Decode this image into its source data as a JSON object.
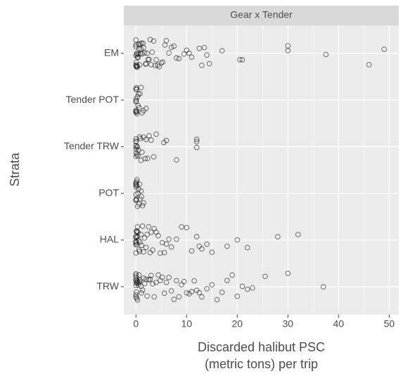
{
  "chart_data": {
    "type": "scatter",
    "facet_title": "Gear x Tender",
    "x_label_lines": [
      "Discarded halibut PSC",
      "(metric tons) per trip"
    ],
    "y_label": "Strata",
    "categories": [
      "EM",
      "Tender POT",
      "Tender TRW",
      "POT",
      "HAL",
      "TRW"
    ],
    "x": [
      [
        0,
        0,
        0,
        0,
        0,
        0,
        0.05,
        0.1,
        0.1,
        0.15,
        0.2,
        0.2,
        0.3,
        0.3,
        0.4,
        0.5,
        0.5,
        0.6,
        0.7,
        0.8,
        0.9,
        1,
        1.1,
        1.2,
        1.4,
        1.5,
        1.7,
        1.9,
        2,
        2.2,
        2.4,
        2.6,
        2.8,
        3,
        3.2,
        3.5,
        3.8,
        4,
        4.3,
        4.6,
        5,
        5.3,
        5.7,
        6,
        6.5,
        7,
        7.5,
        8,
        8.5,
        9.5,
        10,
        10.5,
        11,
        12.5,
        13,
        13.5,
        14,
        14.5,
        17,
        20.5,
        21,
        30,
        30,
        37.5,
        46,
        49
      ],
      [
        0,
        0,
        0,
        0,
        0,
        0,
        0.05,
        0.1,
        0.1,
        0.2,
        0.2,
        0.3,
        0.4,
        0.5,
        0.6,
        0.8,
        1,
        1.2,
        1.5,
        2
      ],
      [
        0,
        0,
        0,
        0,
        0,
        0,
        0.05,
        0.1,
        0.2,
        0.3,
        0.4,
        0.5,
        0.7,
        0.9,
        1,
        1.2,
        1.5,
        1.8,
        2,
        2.3,
        2.6,
        3,
        3.5,
        4,
        5.5,
        6,
        8,
        12,
        12,
        12
      ],
      [
        0,
        0,
        0,
        0,
        0,
        0,
        0.05,
        0.1,
        0.1,
        0.2,
        0.2,
        0.3,
        0.4,
        0.5,
        0.6,
        0.7,
        0.8,
        1,
        1.1,
        1.3,
        1.5
      ],
      [
        0,
        0,
        0,
        0,
        0,
        0,
        0,
        0.05,
        0.1,
        0.1,
        0.15,
        0.2,
        0.3,
        0.3,
        0.4,
        0.5,
        0.6,
        0.7,
        0.8,
        1,
        1.1,
        1.3,
        1.5,
        1.7,
        2,
        2.2,
        2.5,
        2.8,
        3,
        3.3,
        3.6,
        4,
        4.4,
        4.8,
        5.2,
        5.6,
        6,
        6.5,
        7,
        8,
        9,
        10,
        11,
        12,
        12.5,
        13,
        14,
        15,
        18,
        20,
        22,
        28,
        32
      ],
      [
        0,
        0,
        0,
        0,
        0,
        0,
        0,
        0.05,
        0.1,
        0.1,
        0.15,
        0.2,
        0.3,
        0.3,
        0.4,
        0.5,
        0.6,
        0.7,
        0.8,
        1,
        1.1,
        1.3,
        1.5,
        1.7,
        2,
        2.2,
        2.5,
        2.8,
        3,
        3.3,
        3.6,
        4,
        4.4,
        4.8,
        5.2,
        5.6,
        6,
        6.5,
        7,
        7.5,
        8,
        8.5,
        9,
        9.5,
        10,
        10.5,
        11,
        11.5,
        12,
        12.5,
        13,
        14,
        15,
        16,
        17,
        18,
        19,
        20,
        21,
        22,
        23,
        25.5,
        30,
        37
      ]
    ],
    "xlim": [
      -2.4,
      51.9
    ],
    "xticks": [
      0,
      10,
      20,
      30,
      40,
      50
    ],
    "grid": true,
    "point_color": "#000000"
  }
}
